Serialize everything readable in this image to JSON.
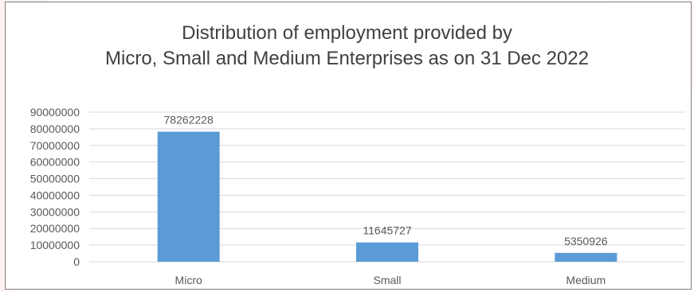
{
  "chart_data": {
    "type": "bar",
    "title": [
      "Distribution of employment provided by",
      "Micro, Small and Medium Enterprises as on 31 Dec 2022"
    ],
    "categories": [
      "Micro",
      "Small",
      "Medium"
    ],
    "values": [
      78262228,
      11645727,
      5350926
    ],
    "data_labels": [
      "78262228",
      "11645727",
      "5350926"
    ],
    "y_ticks": [
      "0",
      "10000000",
      "20000000",
      "30000000",
      "40000000",
      "50000000",
      "60000000",
      "70000000",
      "80000000",
      "90000000"
    ],
    "ylim": [
      0,
      90000000
    ],
    "grid": true,
    "legend": "none",
    "colors": {
      "bar": "#5b9bd5",
      "grid": "#d9d9d9",
      "text": "#595959",
      "title": "#404040"
    }
  }
}
